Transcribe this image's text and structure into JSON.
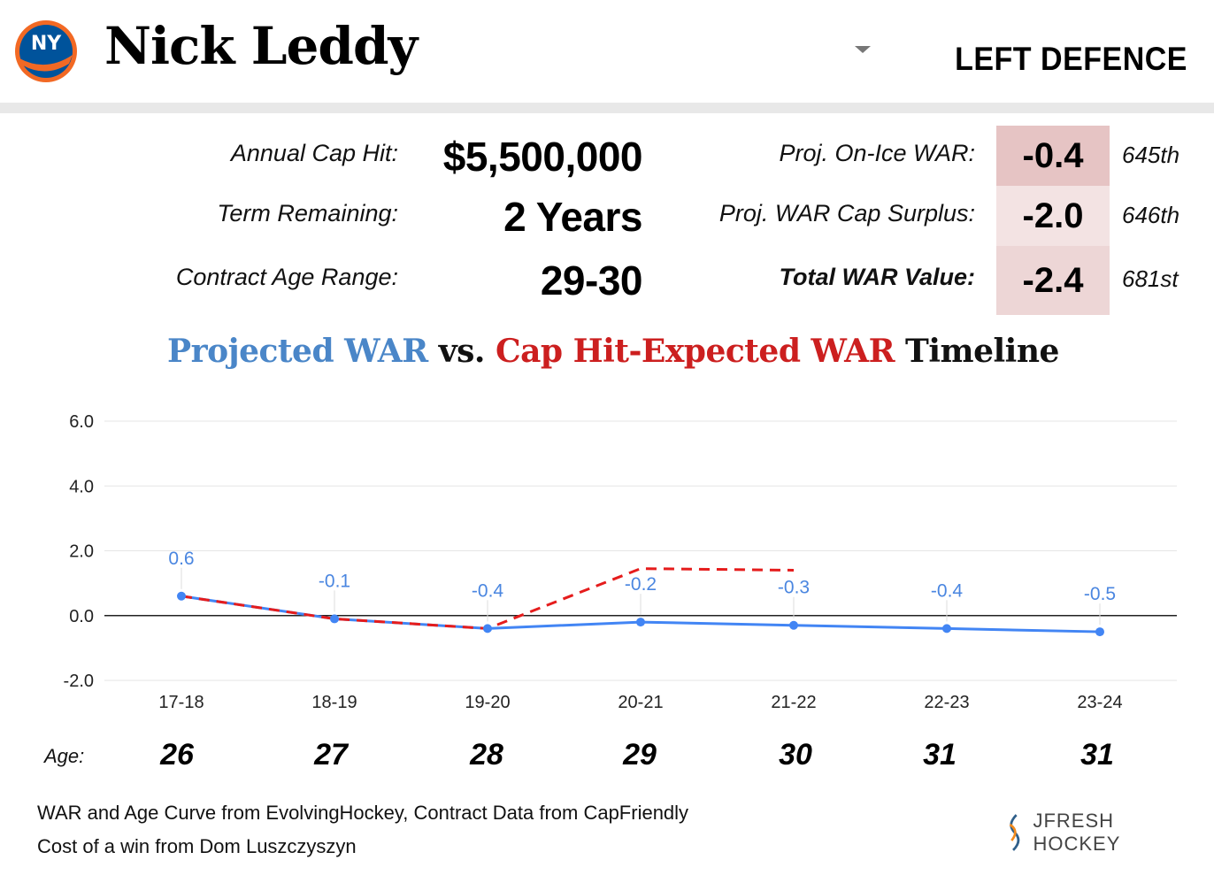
{
  "header": {
    "team_logo_text": "NY",
    "player_name": "Nick Leddy",
    "position": "LEFT DEFENCE"
  },
  "contract": {
    "cap_hit_label": "Annual Cap Hit:",
    "cap_hit_value": "$5,500,000",
    "term_label": "Term Remaining:",
    "term_value": "2 Years",
    "age_range_label": "Contract Age Range:",
    "age_range_value": "29-30"
  },
  "war": {
    "onice_label": "Proj. On-Ice WAR:",
    "onice_value": "-0.4",
    "onice_rank": "645th",
    "surplus_label": "Proj. WAR Cap Surplus:",
    "surplus_value": "-2.0",
    "surplus_rank": "646th",
    "total_label": "Total WAR Value:",
    "total_value": "-2.4",
    "total_rank": "681st",
    "colors": {
      "onice_bg": "#e6c4c4",
      "surplus_bg": "#f3e3e3",
      "total_bg": "#edd6d6"
    }
  },
  "chart_title": {
    "part1": "Projected WAR",
    "part2": " vs. ",
    "part3": "Cap Hit-Expected WAR",
    "part4": " Timeline"
  },
  "chart_data": {
    "type": "line",
    "categories": [
      "17-18",
      "18-19",
      "19-20",
      "20-21",
      "21-22",
      "22-23",
      "23-24"
    ],
    "ylim": [
      -2.0,
      6.0
    ],
    "yticks": [
      6.0,
      4.0,
      2.0,
      0.0,
      -2.0
    ],
    "ytick_labels": [
      "6.0",
      "4.0",
      "2.0",
      "0.0",
      "-2.0"
    ],
    "grid": true,
    "series": [
      {
        "name": "Projected WAR",
        "color": "#4285f4",
        "style": "solid",
        "values": [
          0.6,
          -0.1,
          -0.4,
          -0.2,
          -0.3,
          -0.4,
          -0.5
        ],
        "labels": [
          "0.6",
          "-0.1",
          "-0.4",
          "-0.2",
          "-0.3",
          "-0.4",
          "-0.5"
        ]
      },
      {
        "name": "Cap Hit-Expected WAR",
        "color": "#e51c1c",
        "style": "dashed",
        "values": [
          0.6,
          -0.1,
          -0.4,
          1.45,
          1.4,
          null,
          null
        ]
      }
    ]
  },
  "ages": {
    "label": "Age:",
    "values": [
      "26",
      "27",
      "28",
      "29",
      "30",
      "31",
      "31"
    ]
  },
  "footer": {
    "line1": "WAR and Age Curve from EvolvingHockey, Contract Data from CapFriendly",
    "line2": "Cost of a win from Dom Luszczyszyn",
    "brand": "JFRESH HOCKEY"
  }
}
